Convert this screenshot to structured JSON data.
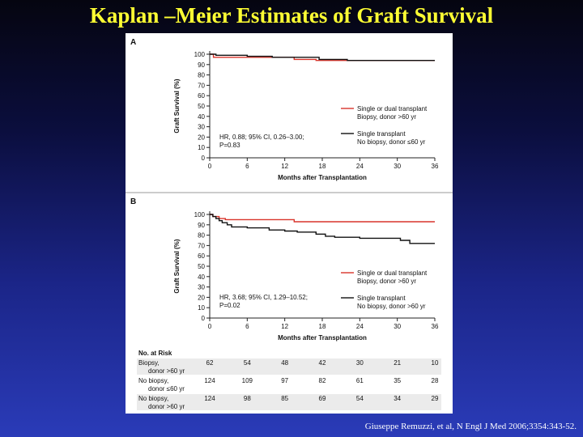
{
  "slide": {
    "title": "Kaplan –Meier Estimates of Graft Survival",
    "citation": "Giuseppe Remuzzi, et al, N Engl J Med 2006;3354:343-52."
  },
  "colors": {
    "red": "#d9342b",
    "black": "#111111",
    "axis": "#222222",
    "stripe": "#ebebeb"
  },
  "chart_data": [
    {
      "panel": "A",
      "type": "line",
      "xlabel": "Months after Transplantation",
      "ylabel": "Graft Survival (%)",
      "xlim": [
        0,
        36
      ],
      "ylim": [
        0,
        100
      ],
      "xticks": [
        0,
        6,
        12,
        18,
        24,
        30,
        36
      ],
      "yticks": [
        0,
        10,
        20,
        30,
        40,
        50,
        60,
        70,
        80,
        90,
        100
      ],
      "annotation": [
        "HR, 0.88; 95% CI, 0.26–3.00;",
        "P=0.83"
      ],
      "series": [
        {
          "label_lines": [
            "Single or dual transplant",
            "Biopsy, donor >60 yr"
          ],
          "color": "red",
          "points": [
            [
              0,
              100
            ],
            [
              0.6,
              100
            ],
            [
              0.6,
              97
            ],
            [
              13.5,
              97
            ],
            [
              13.5,
              95
            ],
            [
              17,
              95
            ],
            [
              17,
              94
            ],
            [
              36,
              94
            ]
          ]
        },
        {
          "label_lines": [
            "Single transplant",
            "No biopsy, donor ≤60 yr"
          ],
          "color": "black",
          "points": [
            [
              0,
              100
            ],
            [
              1,
              100
            ],
            [
              1,
              99
            ],
            [
              6,
              99
            ],
            [
              6,
              98
            ],
            [
              10,
              98
            ],
            [
              10,
              97
            ],
            [
              17.5,
              97
            ],
            [
              17.5,
              95
            ],
            [
              22,
              95
            ],
            [
              22,
              94
            ],
            [
              36,
              94
            ]
          ]
        }
      ]
    },
    {
      "panel": "B",
      "type": "line",
      "xlabel": "Months after Transplantation",
      "ylabel": "Graft Survival (%)",
      "xlim": [
        0,
        36
      ],
      "ylim": [
        0,
        100
      ],
      "xticks": [
        0,
        6,
        12,
        18,
        24,
        30,
        36
      ],
      "yticks": [
        0,
        10,
        20,
        30,
        40,
        50,
        60,
        70,
        80,
        90,
        100
      ],
      "annotation": [
        "HR, 3.68; 95% CI, 1.29–10.52;",
        "P=0.02"
      ],
      "series": [
        {
          "label_lines": [
            "Single or dual transplant",
            "Biopsy, donor >60 yr"
          ],
          "color": "red",
          "points": [
            [
              0,
              100
            ],
            [
              0.5,
              100
            ],
            [
              0.5,
              98
            ],
            [
              1.5,
              98
            ],
            [
              1.5,
              96
            ],
            [
              2.5,
              96
            ],
            [
              2.5,
              95
            ],
            [
              13.5,
              95
            ],
            [
              13.5,
              93
            ],
            [
              36,
              93
            ]
          ]
        },
        {
          "label_lines": [
            "Single transplant",
            "No biopsy, donor >60 yr"
          ],
          "color": "black",
          "points": [
            [
              0,
              100
            ],
            [
              0.5,
              100
            ],
            [
              0.5,
              98
            ],
            [
              1,
              98
            ],
            [
              1,
              96
            ],
            [
              1.5,
              96
            ],
            [
              1.5,
              94
            ],
            [
              2,
              94
            ],
            [
              2,
              92
            ],
            [
              2.8,
              92
            ],
            [
              2.8,
              90
            ],
            [
              3.5,
              90
            ],
            [
              3.5,
              88
            ],
            [
              6,
              88
            ],
            [
              6,
              87
            ],
            [
              9.5,
              87
            ],
            [
              9.5,
              85
            ],
            [
              12,
              85
            ],
            [
              12,
              84
            ],
            [
              14,
              84
            ],
            [
              14,
              83
            ],
            [
              17,
              83
            ],
            [
              17,
              81
            ],
            [
              18.5,
              81
            ],
            [
              18.5,
              79
            ],
            [
              20,
              79
            ],
            [
              20,
              78
            ],
            [
              24,
              78
            ],
            [
              24,
              77
            ],
            [
              30.5,
              77
            ],
            [
              30.5,
              75
            ],
            [
              32,
              75
            ],
            [
              32,
              72
            ],
            [
              36,
              72
            ]
          ]
        }
      ]
    }
  ],
  "at_risk": {
    "header": "No. at Risk",
    "rows": [
      {
        "label_lines": [
          "Biopsy,",
          "donor >60 yr"
        ],
        "values": [
          "62",
          "54",
          "48",
          "42",
          "30",
          "21",
          "10"
        ]
      },
      {
        "label_lines": [
          "No biopsy,",
          "donor ≤60 yr"
        ],
        "values": [
          "124",
          "109",
          "97",
          "82",
          "61",
          "35",
          "28"
        ]
      },
      {
        "label_lines": [
          "No biopsy,",
          "donor >60 yr"
        ],
        "values": [
          "124",
          "98",
          "85",
          "69",
          "54",
          "34",
          "29"
        ]
      }
    ]
  }
}
